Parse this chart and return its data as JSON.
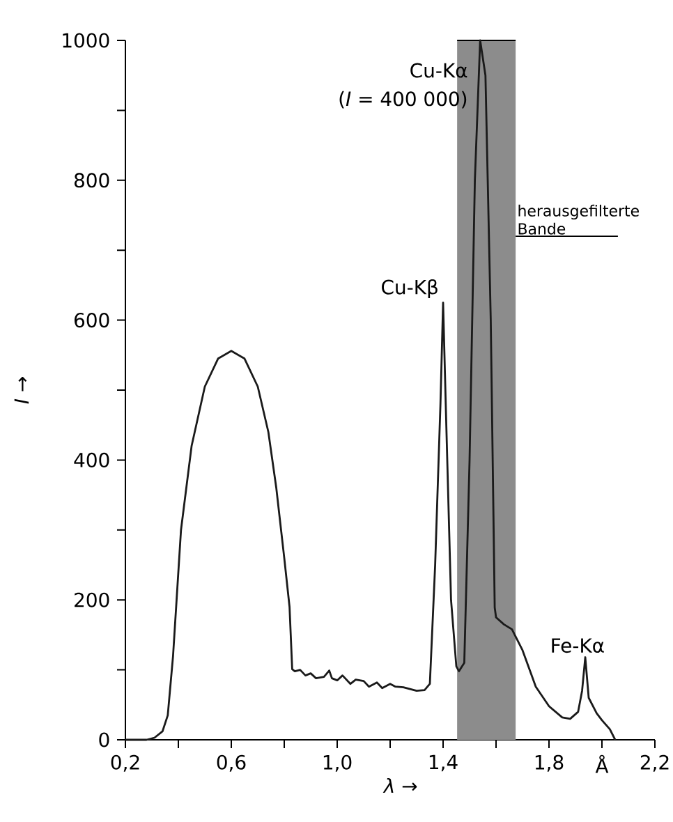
{
  "chart_data": {
    "type": "line",
    "xlabel": "*λ* →",
    "ylabel": "*I* →",
    "xlim": [
      0.2,
      2.2
    ],
    "ylim": [
      0,
      1000
    ],
    "xticks": [
      {
        "value": 0.2,
        "label": "0,2"
      },
      {
        "value": 0.4,
        "label": null
      },
      {
        "value": 0.6,
        "label": "0,6"
      },
      {
        "value": 0.8,
        "label": null
      },
      {
        "value": 1.0,
        "label": "1,0"
      },
      {
        "value": 1.2,
        "label": null
      },
      {
        "value": 1.4,
        "label": "1,4"
      },
      {
        "value": 1.6,
        "label": null
      },
      {
        "value": 1.8,
        "label": "1,8"
      },
      {
        "value": 2.0,
        "label": "Å"
      },
      {
        "value": 2.2,
        "label": "2,2"
      }
    ],
    "yticks": [
      0,
      {
        "value": 100,
        "label": null
      },
      200,
      {
        "value": 300,
        "label": null
      },
      400,
      {
        "value": 500,
        "label": null
      },
      600,
      {
        "value": 700,
        "label": null
      },
      800,
      {
        "value": 900,
        "label": null
      },
      1000
    ],
    "grid": false,
    "marker": "none",
    "line_style": "solid",
    "series": [
      {
        "color": "#1a1a1a",
        "x": [
          0.2,
          0.28,
          0.31,
          0.34,
          0.36,
          0.38,
          0.41,
          0.45,
          0.5,
          0.55,
          0.6,
          0.65,
          0.7,
          0.74,
          0.77,
          0.8,
          0.82,
          0.83,
          0.84,
          0.86,
          0.88,
          0.9,
          0.92,
          0.95,
          0.97,
          0.98,
          1.0,
          1.02,
          1.05,
          1.07,
          1.1,
          1.12,
          1.15,
          1.17,
          1.2,
          1.22,
          1.25,
          1.28,
          1.3,
          1.33,
          1.35,
          1.37,
          1.39,
          1.4,
          1.41,
          1.43,
          1.45,
          1.46,
          1.48,
          1.5,
          1.52,
          1.54,
          1.56,
          1.58,
          1.595,
          1.6,
          1.63,
          1.66,
          1.7,
          1.75,
          1.8,
          1.85,
          1.88,
          1.91,
          1.925,
          1.937,
          1.95,
          1.98,
          2.0,
          2.03,
          2.05
        ],
        "values": [
          0,
          0,
          3,
          12,
          35,
          120,
          300,
          420,
          505,
          545,
          556,
          545,
          505,
          440,
          360,
          260,
          190,
          101,
          98,
          100,
          92,
          95,
          88,
          90,
          99,
          88,
          85,
          92,
          80,
          86,
          84,
          76,
          82,
          74,
          80,
          76,
          75,
          72,
          70,
          71,
          80,
          250,
          480,
          625,
          480,
          200,
          105,
          98,
          110,
          400,
          800,
          1000,
          950,
          600,
          189,
          175,
          165,
          158,
          128,
          76,
          48,
          32,
          30,
          40,
          70,
          118,
          60,
          38,
          28,
          15,
          0
        ]
      }
    ],
    "bands": [
      {
        "axis": "x",
        "from": 1.453,
        "to": 1.674,
        "label": "herausgefilterte Bande",
        "color": "#8c8c8c"
      }
    ],
    "annotations": [
      {
        "text": "Cu-Kα",
        "x": 1.54,
        "y": 1000
      },
      {
        "text": "(*I* = 400 000)",
        "x": 1.54,
        "y": 1000
      },
      {
        "text": "Cu-Kβ",
        "x": 1.4,
        "y": 625
      },
      {
        "text": "Fe-Kα",
        "x": 1.937,
        "y": 118
      }
    ]
  }
}
